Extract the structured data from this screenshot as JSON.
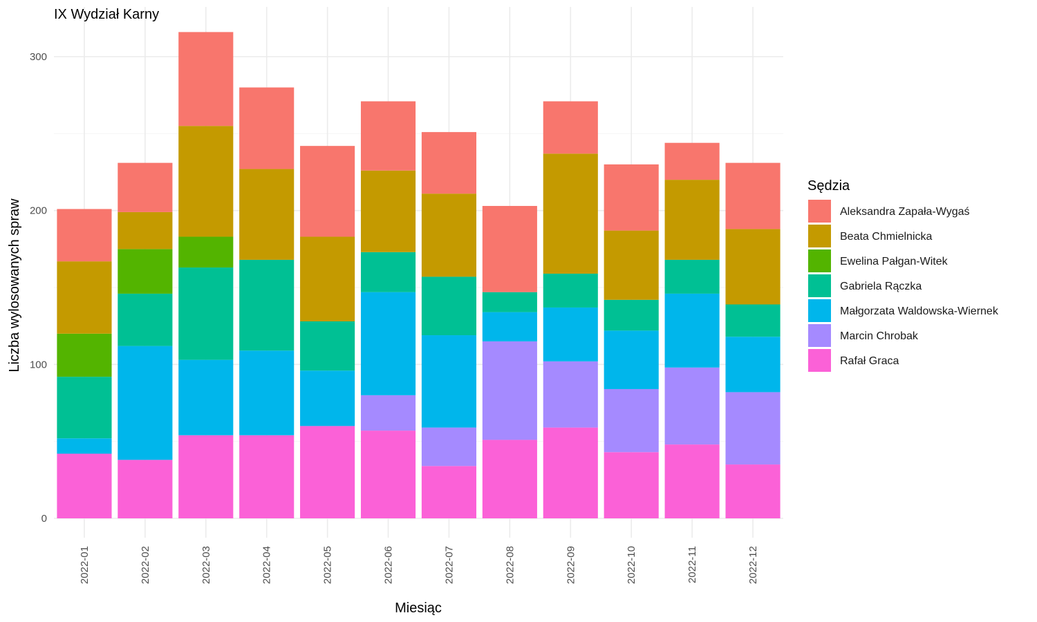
{
  "chart_data": {
    "type": "bar",
    "stacked": true,
    "title": "IX Wydział Karny",
    "xlabel": "Miesiąc",
    "ylabel": "Liczba wylosowanych spraw",
    "ylim": [
      0,
      320
    ],
    "yticks": [
      0,
      100,
      200,
      300
    ],
    "grid": true,
    "legend_title": "Sędzia",
    "legend_position": "right",
    "categories": [
      "2022-01",
      "2022-02",
      "2022-03",
      "2022-04",
      "2022-05",
      "2022-06",
      "2022-07",
      "2022-08",
      "2022-09",
      "2022-10",
      "2022-11",
      "2022-12"
    ],
    "series": [
      {
        "name": "Rafał Graca",
        "color": "#FB61D7",
        "values": [
          42,
          38,
          54,
          54,
          60,
          57,
          34,
          51,
          59,
          43,
          48,
          35
        ]
      },
      {
        "name": "Marcin Chrobak",
        "color": "#A58AFF",
        "values": [
          0,
          0,
          0,
          0,
          0,
          23,
          25,
          64,
          43,
          41,
          50,
          47
        ]
      },
      {
        "name": "Małgorzata Waldowska-Wiernek",
        "color": "#00B6EB",
        "values": [
          10,
          74,
          49,
          55,
          36,
          67,
          60,
          19,
          35,
          38,
          48,
          36
        ]
      },
      {
        "name": "Gabriela Rączka",
        "color": "#00C094",
        "values": [
          40,
          34,
          60,
          59,
          32,
          26,
          38,
          13,
          22,
          20,
          22,
          21
        ]
      },
      {
        "name": "Ewelina Pałgan-Witek",
        "color": "#53B400",
        "values": [
          28,
          29,
          20,
          0,
          0,
          0,
          0,
          0,
          0,
          0,
          0,
          0
        ]
      },
      {
        "name": "Beata Chmielnicka",
        "color": "#C49A00",
        "values": [
          47,
          24,
          72,
          59,
          55,
          53,
          54,
          0,
          78,
          45,
          52,
          49
        ]
      },
      {
        "name": "Aleksandra Zapała-Wygaś",
        "color": "#F8766D",
        "values": [
          34,
          32,
          61,
          53,
          59,
          45,
          40,
          56,
          34,
          43,
          24,
          43
        ]
      }
    ],
    "legend_order": [
      "Aleksandra Zapała-Wygaś",
      "Beata Chmielnicka",
      "Ewelina Pałgan-Witek",
      "Gabriela Rączka",
      "Małgorzata Waldowska-Wiernek",
      "Marcin Chrobak",
      "Rafał Graca"
    ]
  }
}
